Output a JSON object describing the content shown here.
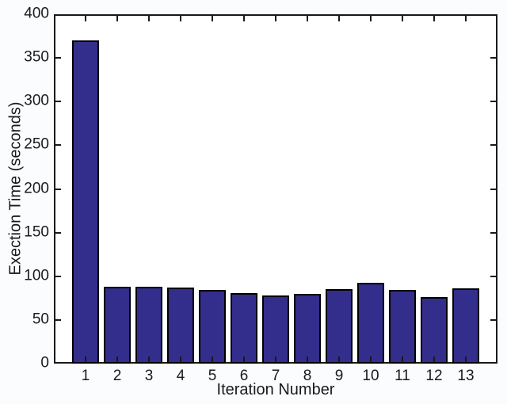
{
  "figure": {
    "background_color": "#fafcfd",
    "plot_background_color": "#ffffff",
    "axis_color": "#191919",
    "text_color": "#1a1a1a"
  },
  "chart_data": {
    "type": "bar",
    "title": "",
    "xlabel": "Iteration Number",
    "ylabel": "Exection Time (seconds)",
    "categories": [
      "1",
      "2",
      "3",
      "4",
      "5",
      "6",
      "7",
      "8",
      "9",
      "10",
      "11",
      "12",
      "13"
    ],
    "values": [
      370,
      88,
      88,
      87,
      84,
      81,
      78,
      80,
      85,
      93,
      84,
      76,
      86
    ],
    "xlim": [
      0,
      14
    ],
    "ylim": [
      0,
      400
    ],
    "yticks": [
      0,
      50,
      100,
      150,
      200,
      250,
      300,
      350,
      400
    ],
    "bar_color": "#332e8b",
    "bar_edge_color": "#000000",
    "bar_rel_width": 0.8,
    "grid": false,
    "legend_position": "none"
  }
}
